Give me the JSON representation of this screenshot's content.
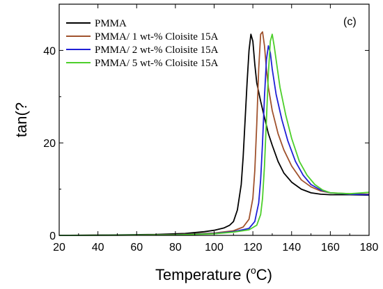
{
  "chart_data": {
    "type": "line",
    "panel_label": "(c)",
    "xlabel": "Temperature (",
    "xlabel_sup": "o",
    "xlabel_tail": "C)",
    "ylabel": "tan(?",
    "xlim": [
      20,
      180
    ],
    "ylim": [
      0,
      50
    ],
    "x_ticks": [
      20,
      40,
      60,
      80,
      100,
      120,
      140,
      160,
      180
    ],
    "y_ticks": [
      0,
      20,
      40
    ],
    "legend_position": "top-left",
    "series": [
      {
        "name": "PMMA",
        "color": "#000000",
        "x": [
          20,
          35,
          50,
          70,
          85,
          95,
          100,
          105,
          108,
          110,
          112,
          114,
          115,
          116,
          117,
          118,
          119,
          120,
          121,
          122,
          124,
          126,
          128,
          130,
          133,
          136,
          140,
          145,
          150,
          155,
          160,
          170,
          180
        ],
        "y": [
          0,
          0.05,
          0.1,
          0.2,
          0.4,
          0.8,
          1.1,
          1.6,
          2.2,
          3.0,
          5.5,
          11,
          17,
          25,
          33,
          40,
          43.5,
          42,
          37,
          33,
          29,
          25.5,
          22,
          19.5,
          16,
          13.5,
          11.5,
          10,
          9.2,
          8.9,
          8.8,
          8.8,
          8.7
        ]
      },
      {
        "name": "PMMA/ 1 wt-% Cloisite 15A",
        "color": "#a0522d",
        "x": [
          20,
          50,
          80,
          100,
          110,
          115,
          118,
          120,
          121,
          122,
          123,
          124,
          125,
          126,
          127,
          128,
          130,
          133,
          136,
          140,
          145,
          150,
          155,
          160,
          170,
          180
        ],
        "y": [
          0,
          0.05,
          0.15,
          0.5,
          1.0,
          1.8,
          3.5,
          8,
          14,
          24,
          36,
          43.5,
          44,
          41,
          36,
          32,
          27,
          22,
          18.5,
          15,
          12,
          10.5,
          9.6,
          9.2,
          9.0,
          8.9
        ]
      },
      {
        "name": "PMMA/ 2 wt-% Cloisite 15A",
        "color": "#1f1fd6",
        "x": [
          20,
          50,
          80,
          100,
          110,
          118,
          121,
          123,
          124,
          125,
          126,
          127,
          128,
          129,
          130,
          132,
          135,
          138,
          142,
          146,
          150,
          155,
          160,
          170,
          180
        ],
        "y": [
          0,
          0.05,
          0.12,
          0.4,
          0.8,
          1.5,
          3.0,
          7,
          12,
          20,
          30,
          38,
          41,
          39.5,
          36,
          30.5,
          25,
          20.5,
          16,
          13,
          11,
          9.8,
          9.2,
          8.9,
          8.8
        ]
      },
      {
        "name": "PMMA/ 5 wt-% Cloisite 15A",
        "color": "#4ccf2a",
        "x": [
          20,
          50,
          80,
          100,
          110,
          118,
          122,
          124,
          125,
          126,
          127,
          128,
          129,
          130,
          131,
          132,
          134,
          137,
          140,
          144,
          148,
          152,
          156,
          160,
          170,
          180
        ],
        "y": [
          0,
          0.05,
          0.1,
          0.35,
          0.7,
          1.2,
          2.2,
          4.5,
          8,
          15,
          25,
          35,
          42,
          43.5,
          41,
          38,
          32,
          26,
          21,
          16,
          13,
          11,
          9.8,
          9.2,
          9.0,
          9.3
        ]
      }
    ]
  }
}
